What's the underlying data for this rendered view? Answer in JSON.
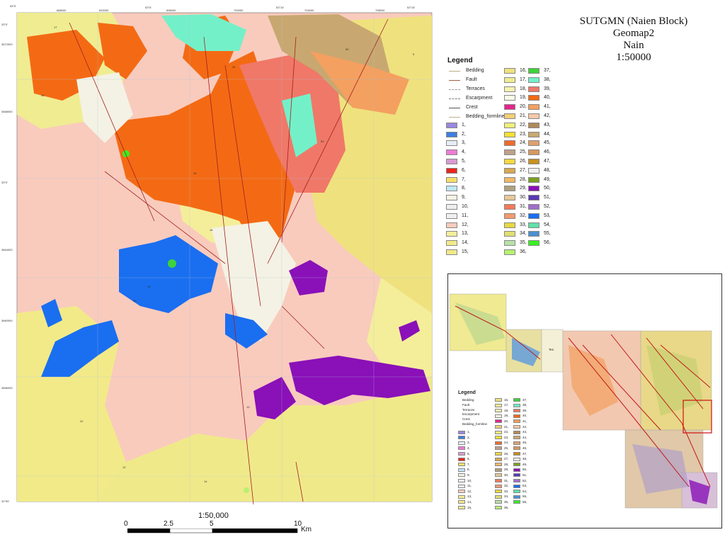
{
  "title_block": {
    "line1": "SUTGMN (Naien Block)",
    "line2": "Geomap2",
    "line3": "Nain",
    "line4": "1:50000"
  },
  "legend": {
    "title": "Legend",
    "symbols": [
      {
        "label": "Bedding",
        "color": "#b8a888"
      },
      {
        "label": "Fault",
        "color": "#a06040"
      },
      {
        "label": "Terraces",
        "color": "#999999"
      },
      {
        "label": "Escarpment",
        "color": "#777777"
      },
      {
        "label": "Crest",
        "color": "#555555"
      },
      {
        "label": "Bedding_formline",
        "color": "#c0b090"
      }
    ],
    "units": [
      {
        "label": "1,",
        "color": "#9a87e0"
      },
      {
        "label": "2,",
        "color": "#3d7fe0"
      },
      {
        "label": "3,",
        "color": "#e8eef8"
      },
      {
        "label": "4,",
        "color": "#f07ad6"
      },
      {
        "label": "5,",
        "color": "#d99ad0"
      },
      {
        "label": "6,",
        "color": "#e8251c"
      },
      {
        "label": "7,",
        "color": "#f6df6a"
      },
      {
        "label": "8,",
        "color": "#bfe7f5"
      },
      {
        "label": "9,",
        "color": "#f4f2e4"
      },
      {
        "label": "10,",
        "color": "#eeeeee"
      },
      {
        "label": "11,",
        "color": "#f0f0f0"
      },
      {
        "label": "12,",
        "color": "#f9cbbd"
      },
      {
        "label": "13,",
        "color": "#f4ee9a"
      },
      {
        "label": "14,",
        "color": "#f2ea88"
      },
      {
        "label": "15,",
        "color": "#f0e98a"
      },
      {
        "label": "16,",
        "color": "#efe27e"
      },
      {
        "label": "17,",
        "color": "#f0ec92"
      },
      {
        "label": "18,",
        "color": "#f6f3b0"
      },
      {
        "label": "19,",
        "color": "#fbfbe8"
      },
      {
        "label": "20,",
        "color": "#e6258c"
      },
      {
        "label": "21,",
        "color": "#f2cf76"
      },
      {
        "label": "22,",
        "color": "#eef07a"
      },
      {
        "label": "23,",
        "color": "#f4e030"
      },
      {
        "label": "24,",
        "color": "#f06b2d"
      },
      {
        "label": "25,",
        "color": "#bfa088"
      },
      {
        "label": "26,",
        "color": "#f4d840"
      },
      {
        "label": "27,",
        "color": "#d8a850"
      },
      {
        "label": "28,",
        "color": "#f2b86a"
      },
      {
        "label": "29,",
        "color": "#b0a080"
      },
      {
        "label": "30,",
        "color": "#e7c89a"
      },
      {
        "label": "31,",
        "color": "#f47a5a"
      },
      {
        "label": "32,",
        "color": "#f59a6e"
      },
      {
        "label": "33,",
        "color": "#e8d840"
      },
      {
        "label": "34,",
        "color": "#e0e070"
      },
      {
        "label": "35,",
        "color": "#b8e0a8"
      },
      {
        "label": "36,",
        "color": "#b8f070"
      },
      {
        "label": "37,",
        "color": "#3ed33a"
      },
      {
        "label": "38,",
        "color": "#74f0c8"
      },
      {
        "label": "39,",
        "color": "#f07868"
      },
      {
        "label": "40,",
        "color": "#f46a14"
      },
      {
        "label": "41,",
        "color": "#f4a060"
      },
      {
        "label": "42,",
        "color": "#f8c8a8"
      },
      {
        "label": "43,",
        "color": "#b08a5a"
      },
      {
        "label": "44,",
        "color": "#c8a870"
      },
      {
        "label": "45,",
        "color": "#e0a070"
      },
      {
        "label": "46,",
        "color": "#d89860"
      },
      {
        "label": "47,",
        "color": "#c8901e"
      },
      {
        "label": "48,",
        "color": "#f0f0f0"
      },
      {
        "label": "49,",
        "color": "#7aa020"
      },
      {
        "label": "50,",
        "color": "#8a10b8"
      },
      {
        "label": "51,",
        "color": "#5a3ab0"
      },
      {
        "label": "52,",
        "color": "#a070c8"
      },
      {
        "label": "53,",
        "color": "#1a6ef0"
      },
      {
        "label": "54,",
        "color": "#60e0a8"
      },
      {
        "label": "55,",
        "color": "#4a90d0"
      },
      {
        "label": "56,",
        "color": "#38f020"
      }
    ]
  },
  "scalebar": {
    "scale_text": "1:50,000",
    "labels": [
      "0",
      "2.5",
      "5",
      "10"
    ],
    "unit": "Km"
  },
  "inset": {
    "tag": "Tes",
    "legend_title": "Legend",
    "symbols": [
      "Bedding",
      "Fault",
      "Terraces",
      "Escarpment",
      "Crest",
      "Bedding_formline"
    ]
  },
  "map": {
    "top_ticks": [
      "53°0'",
      "688000",
      "692000",
      "53°5'",
      "696000",
      "700000",
      "53°10'",
      "704000",
      "708000",
      "53°15'"
    ],
    "left_ticks": [
      "33°0'",
      "3672000",
      "3668000",
      "33°0'",
      "3664000",
      "3660000",
      "3656000",
      "32°50'"
    ],
    "unit_tags": [
      "17",
      "28",
      "50",
      "36",
      "50",
      "26",
      "18",
      "22",
      "12",
      "14",
      "13",
      "25",
      "40",
      "5"
    ]
  }
}
